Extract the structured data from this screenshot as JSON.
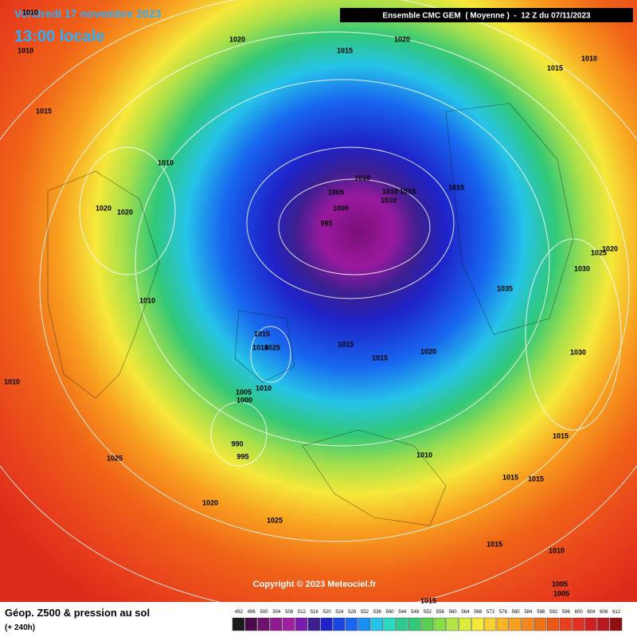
{
  "header": {
    "date": "Vendredi 17 novembre 2023",
    "time": "13:00 locale",
    "model": "Ensemble CMC GEM  ( Moyenne )  -  12 Z du 07/11/2023"
  },
  "copyright": "Copyright © 2023 Meteociel.fr",
  "footer": {
    "title": "Géop. Z500 & pression au sol",
    "lead": "(+ 240h)"
  },
  "legend": {
    "values": [
      492,
      496,
      500,
      504,
      508,
      512,
      516,
      520,
      524,
      528,
      532,
      536,
      540,
      544,
      548,
      552,
      556,
      560,
      564,
      568,
      572,
      576,
      580,
      584,
      588,
      592,
      596,
      600,
      604,
      608,
      612
    ]
  },
  "isobar_labels": [
    "1010",
    "1010",
    "1020",
    "1015",
    "1020",
    "1010",
    "1015",
    "1015",
    "1010",
    "1010",
    "1005",
    "1010",
    "1015",
    "1010",
    "1000",
    "995",
    "1015",
    "1020",
    "1020",
    "1025",
    "1020",
    "1030",
    "1035",
    "1010",
    "1015",
    "1010",
    "1025",
    "1015",
    "1020",
    "1015",
    "1030",
    "1010",
    "1005",
    "1010",
    "1000",
    "990",
    "995",
    "1025",
    "1010",
    "1015",
    "1015",
    "1015",
    "1020",
    "1025",
    "1015",
    "1010",
    "1005",
    "1005",
    "1015"
  ]
}
